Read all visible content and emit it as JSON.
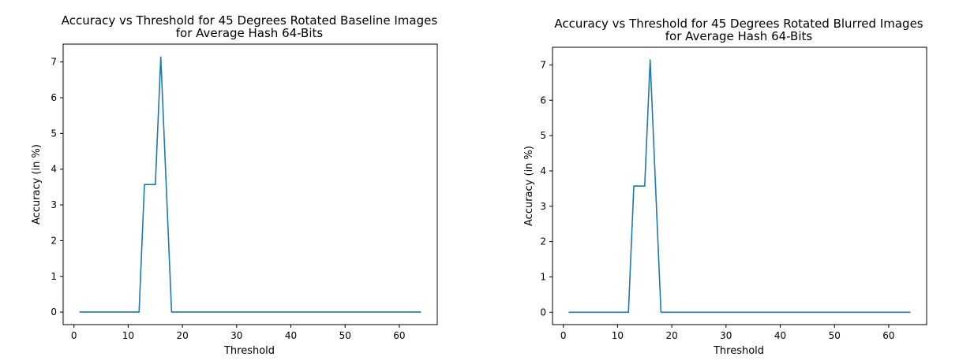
{
  "chart_data": [
    {
      "type": "line",
      "title": "Accuracy vs Threshold for 45 Degrees Rotated Baseline Images",
      "subtitle": "for Average Hash 64-Bits",
      "xlabel": "Threshold",
      "ylabel": "Accuracy (in %)",
      "xlim": [
        -2,
        67
      ],
      "ylim": [
        -0.35,
        7.5
      ],
      "xticks": [
        0,
        10,
        20,
        30,
        40,
        50,
        60
      ],
      "yticks": [
        0,
        1,
        2,
        3,
        4,
        5,
        6,
        7
      ],
      "grid": false,
      "color": "#1f77b4",
      "series": [
        {
          "x": [
            1,
            12,
            13,
            15,
            16,
            18,
            64
          ],
          "y": [
            0,
            0,
            3.57,
            3.57,
            7.14,
            0,
            0
          ]
        }
      ]
    },
    {
      "type": "line",
      "title": "Accuracy vs Threshold for 45 Degrees Rotated Blurred Images",
      "subtitle": "for Average Hash 64-Bits",
      "xlabel": "Threshold",
      "ylabel": "Accuracy (in %)",
      "xlim": [
        -2,
        67
      ],
      "ylim": [
        -0.35,
        7.5
      ],
      "xticks": [
        0,
        10,
        20,
        30,
        40,
        50,
        60
      ],
      "yticks": [
        0,
        1,
        2,
        3,
        4,
        5,
        6,
        7
      ],
      "grid": false,
      "color": "#1f77b4",
      "series": [
        {
          "x": [
            1,
            12,
            13,
            15,
            16,
            18,
            64
          ],
          "y": [
            0,
            0,
            3.57,
            3.57,
            7.14,
            0,
            0
          ]
        }
      ]
    }
  ]
}
